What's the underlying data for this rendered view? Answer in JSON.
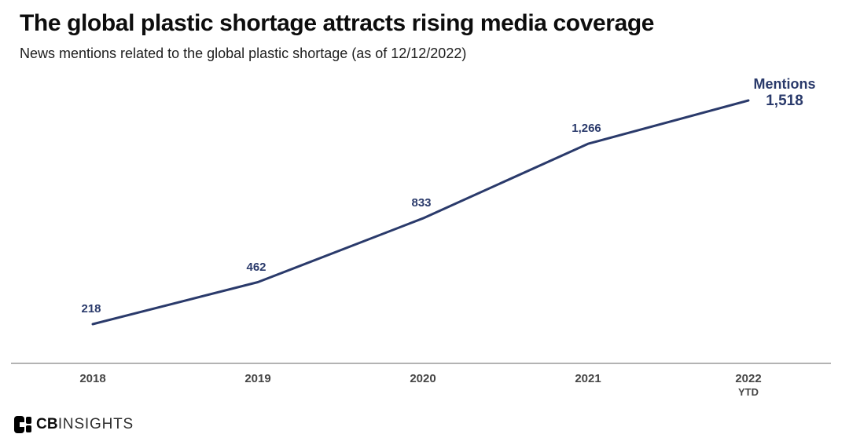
{
  "header": {
    "title": "The global plastic shortage attracts rising media coverage",
    "subtitle": "News mentions related to the global plastic shortage (as of 12/12/2022)"
  },
  "chart_data": {
    "type": "line",
    "title": "The global plastic shortage attracts rising media coverage",
    "subtitle": "News mentions related to the global plastic shortage (as of 12/12/2022)",
    "as_of": "12/12/2022",
    "categories": [
      "2018",
      "2019",
      "2020",
      "2021",
      "2022 YTD"
    ],
    "x_tick_lines": [
      [
        "2018"
      ],
      [
        "2019"
      ],
      [
        "2020"
      ],
      [
        "2021"
      ],
      [
        "2022",
        "YTD"
      ]
    ],
    "series": [
      {
        "name": "Mentions",
        "values": [
          218,
          462,
          833,
          1266,
          1518
        ]
      }
    ],
    "value_labels": [
      "218",
      "462",
      "833",
      "1,266",
      "1,518"
    ],
    "series_label": "Mentions",
    "end_value_label": "1,518",
    "xlabel": "",
    "ylabel": "Mentions",
    "ylim": [
      0,
      1600
    ],
    "grid": false,
    "markers": false,
    "legend": "end-of-line",
    "line_color": "#2a3a6b",
    "label_color": "#2a3a6b",
    "axis_color": "#b3b3b3",
    "tick_color": "#454545"
  },
  "footer": {
    "logo_bold": "CB",
    "logo_rest": "INSIGHTS"
  }
}
